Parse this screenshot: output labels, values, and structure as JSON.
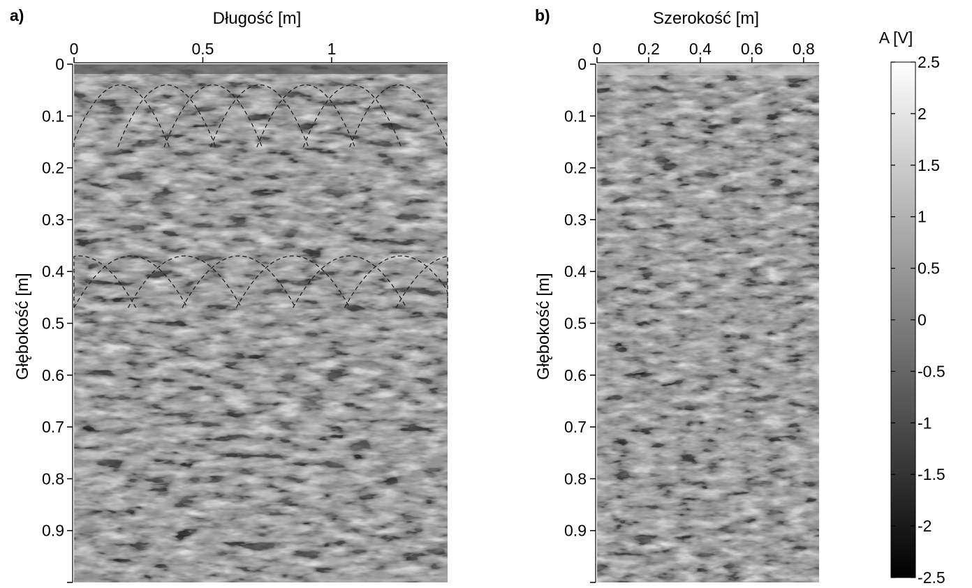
{
  "chart_data": [
    {
      "type": "heatmap",
      "panel_label": "a)",
      "xlabel": "Długość [m]",
      "ylabel": "Głębokość [m]",
      "xlim": [
        0,
        1.45
      ],
      "ylim": [
        0,
        1.0
      ],
      "y_reversed": true,
      "x_axis_position": "top",
      "xticks": [
        0,
        0.5,
        1
      ],
      "xtick_labels": [
        "0",
        "0.5",
        "1"
      ],
      "yticks": [
        0,
        0.1,
        0.2,
        0.3,
        0.4,
        0.5,
        0.6,
        0.7,
        0.8,
        0.9,
        1.0
      ],
      "ytick_labels": [
        "0",
        "0.1",
        "0.2",
        "0.3",
        "0.4",
        "0.5",
        "0.6",
        "0.7",
        "0.8",
        "0.9",
        ""
      ],
      "annotations": [
        {
          "type": "hyperbola-row",
          "apex_depth": 0.04,
          "apex_x": [
            0.18,
            0.36,
            0.54,
            0.72,
            0.9,
            1.08,
            1.26
          ],
          "half_width": 0.19,
          "drop": 0.12
        },
        {
          "type": "hyperbola-row",
          "apex_depth": 0.37,
          "apex_x": [
            0.02,
            0.22,
            0.43,
            0.64,
            0.85,
            1.07,
            1.27,
            1.47
          ],
          "half_width": 0.22,
          "drop": 0.1
        }
      ]
    },
    {
      "type": "heatmap",
      "panel_label": "b)",
      "xlabel": "Szerokość [m]",
      "ylabel": "Głębokość [m]",
      "xlim": [
        0,
        0.86
      ],
      "ylim": [
        0,
        1.0
      ],
      "y_reversed": true,
      "x_axis_position": "top",
      "xticks": [
        0,
        0.2,
        0.4,
        0.6,
        0.8
      ],
      "xtick_labels": [
        "0",
        "0.2",
        "0.4",
        "0.6",
        "0.8"
      ],
      "yticks": [
        0,
        0.1,
        0.2,
        0.3,
        0.4,
        0.5,
        0.6,
        0.7,
        0.8,
        0.9,
        1.0
      ],
      "ytick_labels": [
        "0",
        "0.1",
        "0.2",
        "0.3",
        "0.4",
        "0.5",
        "0.6",
        "0.7",
        "0.8",
        "0.9",
        ""
      ]
    }
  ],
  "colorbar": {
    "title": "A [V]",
    "range": [
      -2.5,
      2.5
    ],
    "colormap": "gray",
    "low_color": "#000000",
    "high_color": "#ffffff",
    "ticks": [
      2.5,
      2,
      1.5,
      1,
      0.5,
      0,
      -0.5,
      -1,
      -1.5,
      -2,
      -2.5
    ],
    "tick_labels": [
      "2.5",
      "2",
      "1.5",
      "1",
      "0.5",
      "0",
      "-0.5",
      "-1",
      "-1.5",
      "-2",
      "-2.5"
    ]
  }
}
